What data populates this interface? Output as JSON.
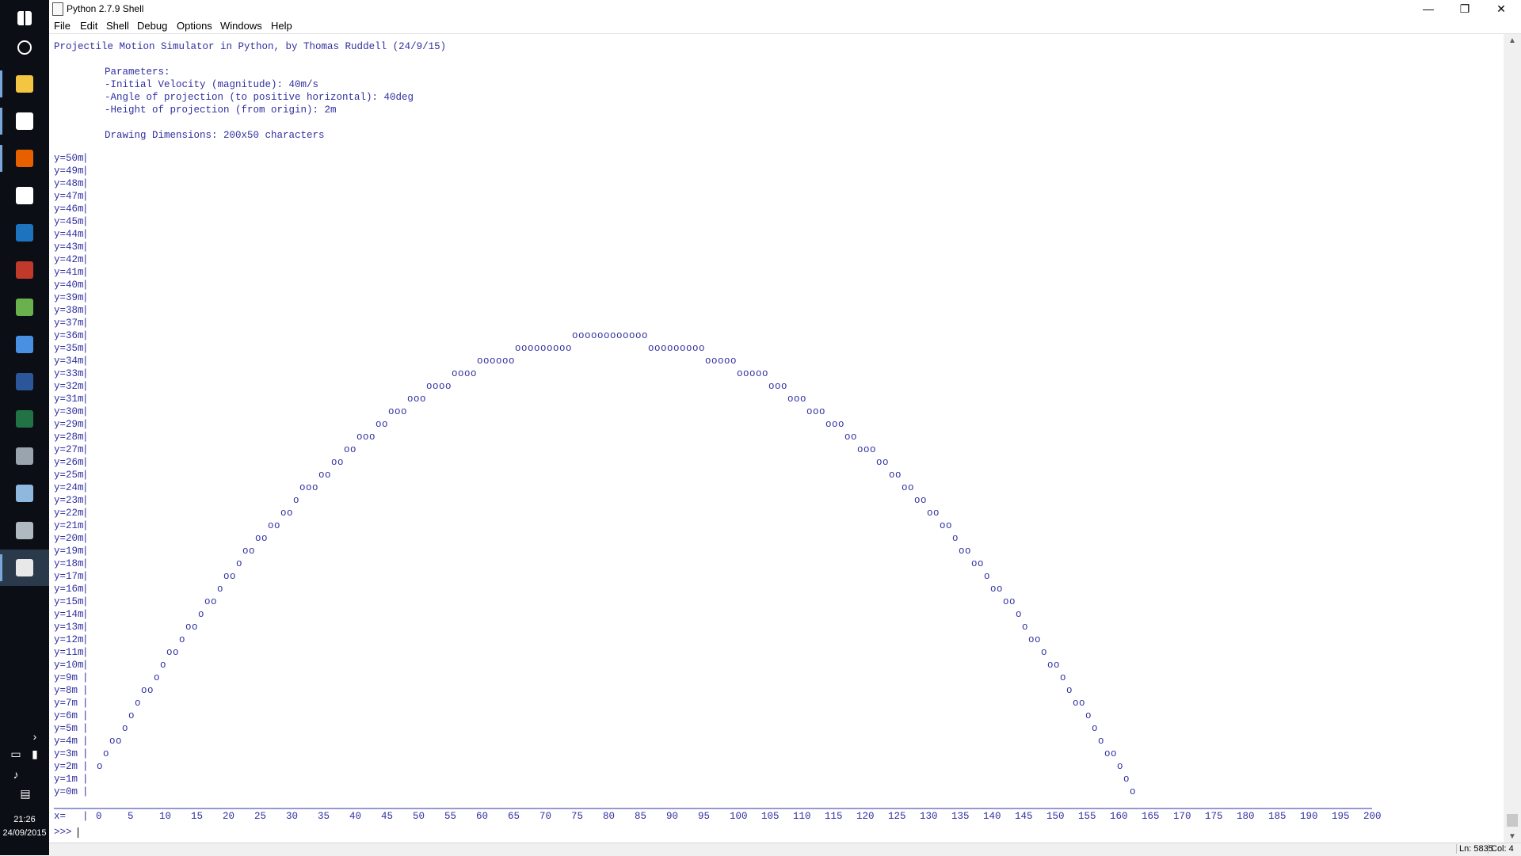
{
  "window": {
    "title": "Python 2.7.9 Shell"
  },
  "menu": [
    "File",
    "Edit",
    "Shell",
    "Debug",
    "Options",
    "Windows",
    "Help"
  ],
  "window_controls": {
    "minimize": "—",
    "restore": "❐",
    "close": "✕"
  },
  "shell": {
    "header": "Projectile Motion Simulator in Python, by Thomas Ruddell (24/9/15)",
    "params_title": "Parameters:",
    "param_lines": [
      "-Initial Velocity (magnitude): 40m/s",
      "-Angle of projection (to positive horizontal): 40deg",
      "-Height of projection (from origin): 2m"
    ],
    "dims": "Drawing Dimensions: 200x50 characters",
    "x_prefix": "x=",
    "prompt": ">>>"
  },
  "chart_data": {
    "type": "scatter",
    "marker": "o",
    "title": "",
    "xlabel": "x=",
    "ylabel": "",
    "xlim": [
      0,
      200
    ],
    "ylim": [
      0,
      50
    ],
    "y_ticks": [
      "y=50m",
      "y=49m",
      "y=48m",
      "y=47m",
      "y=46m",
      "y=45m",
      "y=44m",
      "y=43m",
      "y=42m",
      "y=41m",
      "y=40m",
      "y=39m",
      "y=38m",
      "y=37m",
      "y=36m",
      "y=35m",
      "y=34m",
      "y=33m",
      "y=32m",
      "y=31m",
      "y=30m",
      "y=29m",
      "y=28m",
      "y=27m",
      "y=26m",
      "y=25m",
      "y=24m",
      "y=23m",
      "y=22m",
      "y=21m",
      "y=20m",
      "y=19m",
      "y=18m",
      "y=17m",
      "y=16m",
      "y=15m",
      "y=14m",
      "y=13m",
      "y=12m",
      "y=11m",
      "y=10m",
      "y=9m",
      "y=8m",
      "y=7m",
      "y=6m",
      "y=5m",
      "y=4m",
      "y=3m",
      "y=2m",
      "y=1m",
      "y=0m"
    ],
    "x_ticks": [
      0,
      5,
      10,
      15,
      20,
      25,
      30,
      35,
      40,
      45,
      50,
      55,
      60,
      65,
      70,
      75,
      80,
      85,
      90,
      95,
      100,
      105,
      110,
      115,
      120,
      125,
      130,
      135,
      140,
      145,
      150,
      155,
      160,
      165,
      170,
      175,
      180,
      185,
      190,
      195,
      200
    ],
    "rows": [
      {
        "y": 36,
        "x": [
          75,
          76,
          77,
          78,
          79,
          80,
          81,
          82,
          83,
          84,
          85,
          86
        ]
      },
      {
        "y": 35,
        "x": [
          66,
          67,
          68,
          69,
          70,
          71,
          72,
          73,
          74,
          87,
          88,
          89,
          90,
          91,
          92,
          93,
          94,
          95
        ]
      },
      {
        "y": 34,
        "x": [
          60,
          61,
          62,
          63,
          64,
          65,
          96,
          97,
          98,
          99,
          100
        ]
      },
      {
        "y": 33,
        "x": [
          56,
          57,
          58,
          59,
          101,
          102,
          103,
          104,
          105
        ]
      },
      {
        "y": 32,
        "x": [
          52,
          53,
          54,
          55,
          106,
          107,
          108
        ]
      },
      {
        "y": 31,
        "x": [
          49,
          50,
          51,
          109,
          110,
          111
        ]
      },
      {
        "y": 30,
        "x": [
          46,
          47,
          48,
          112,
          113,
          114
        ]
      },
      {
        "y": 29,
        "x": [
          44,
          45,
          115,
          116,
          117
        ]
      },
      {
        "y": 28,
        "x": [
          41,
          42,
          43,
          118,
          119
        ]
      },
      {
        "y": 27,
        "x": [
          39,
          40,
          120,
          121,
          122
        ]
      },
      {
        "y": 26,
        "x": [
          37,
          38,
          123,
          124
        ]
      },
      {
        "y": 25,
        "x": [
          35,
          36,
          125,
          126
        ]
      },
      {
        "y": 24,
        "x": [
          32,
          33,
          34,
          127,
          128
        ]
      },
      {
        "y": 23,
        "x": [
          31,
          129,
          130
        ]
      },
      {
        "y": 22,
        "x": [
          29,
          30,
          131,
          132
        ]
      },
      {
        "y": 21,
        "x": [
          27,
          28,
          133,
          134
        ]
      },
      {
        "y": 20,
        "x": [
          25,
          26,
          135
        ]
      },
      {
        "y": 19,
        "x": [
          23,
          24,
          136,
          137
        ]
      },
      {
        "y": 18,
        "x": [
          22,
          138,
          139
        ]
      },
      {
        "y": 17,
        "x": [
          20,
          21,
          140
        ]
      },
      {
        "y": 16,
        "x": [
          19,
          141,
          142
        ]
      },
      {
        "y": 15,
        "x": [
          17,
          18,
          143,
          144
        ]
      },
      {
        "y": 14,
        "x": [
          16,
          145
        ]
      },
      {
        "y": 13,
        "x": [
          14,
          15,
          146
        ]
      },
      {
        "y": 12,
        "x": [
          13,
          147,
          148
        ]
      },
      {
        "y": 11,
        "x": [
          11,
          12,
          149
        ]
      },
      {
        "y": 10,
        "x": [
          10,
          150,
          151
        ]
      },
      {
        "y": 9,
        "x": [
          9,
          152
        ]
      },
      {
        "y": 8,
        "x": [
          7,
          8,
          153
        ]
      },
      {
        "y": 7,
        "x": [
          6,
          154,
          155
        ]
      },
      {
        "y": 6,
        "x": [
          5,
          156
        ]
      },
      {
        "y": 5,
        "x": [
          4,
          157
        ]
      },
      {
        "y": 4,
        "x": [
          2,
          3,
          158
        ]
      },
      {
        "y": 3,
        "x": [
          1,
          159,
          160
        ]
      },
      {
        "y": 2,
        "x": [
          0,
          161
        ]
      },
      {
        "y": 1,
        "x": [
          162
        ]
      },
      {
        "y": 0,
        "x": [
          163
        ]
      }
    ]
  },
  "statusbar": {
    "line": "Ln: 5835",
    "col": "Col: 4"
  },
  "tray": {
    "time": "21:26",
    "date": "24/09/2015"
  },
  "taskbar_icons": [
    {
      "name": "windows-start-icon",
      "color": "#ffffff"
    },
    {
      "name": "cortana-search-icon",
      "color": "#ffffff"
    },
    {
      "name": "file-explorer-icon",
      "color": "#f4c542"
    },
    {
      "name": "mail-icon",
      "color": "#ffffff"
    },
    {
      "name": "firefox-icon",
      "color": "#e66000"
    },
    {
      "name": "media-player-icon",
      "color": "#ffffff"
    },
    {
      "name": "settings-app-icon",
      "color": "#1e73be"
    },
    {
      "name": "red-app-icon",
      "color": "#c0392b"
    },
    {
      "name": "spreadsheet-app-icon",
      "color": "#6ab04c"
    },
    {
      "name": "bird-app-icon",
      "color": "#4a90e2"
    },
    {
      "name": "word-icon",
      "color": "#2b579a"
    },
    {
      "name": "excel-icon",
      "color": "#217346"
    },
    {
      "name": "camera-app-icon",
      "color": "#9aa4ae"
    },
    {
      "name": "paint-icon",
      "color": "#8fb8de"
    },
    {
      "name": "tools-app-icon",
      "color": "#b0b8c0"
    },
    {
      "name": "python-idle-icon",
      "color": "#e8e8e8"
    }
  ]
}
